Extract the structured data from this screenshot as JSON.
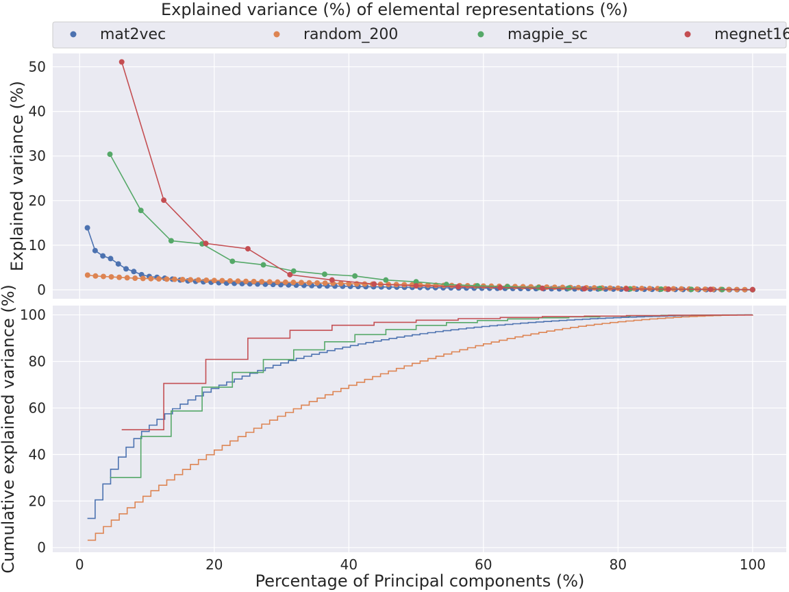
{
  "chart_data": {
    "type": "line",
    "title": "Explained variance (%) of elemental representations (%)",
    "xlabel": "Percentage of Principal components (%)",
    "xlim": [
      -4,
      105
    ],
    "xticks": [
      0,
      20,
      40,
      60,
      80,
      100
    ],
    "legend": {
      "placement": "top",
      "entries": [
        "mat2vec",
        "random_200",
        "magpie_sc",
        "megnet16"
      ]
    },
    "colors": {
      "mat2vec": "#4c72b0",
      "random_200": "#dd8452",
      "magpie_sc": "#55a868",
      "megnet16": "#c44e52"
    },
    "grid": true,
    "panels": [
      {
        "ylabel": "Explained variance (%)",
        "ylim": [
          -2,
          53
        ],
        "yticks": [
          0,
          10,
          20,
          30,
          40,
          50
        ],
        "kind": "line-markers",
        "series": [
          {
            "name": "mat2vec",
            "n": 87,
            "values": [
              13.9,
              8.8,
              7.6,
              7.0,
              5.8,
              4.7,
              4.1,
              3.4,
              3.0,
              2.8,
              2.6,
              2.4,
              2.2,
              2.0,
              1.9,
              1.8,
              1.7,
              1.6,
              1.5,
              1.45,
              1.4,
              1.35,
              1.3,
              1.25,
              1.2,
              1.15,
              1.1,
              1.05,
              1.0,
              0.95,
              0.9,
              0.87,
              0.84,
              0.8,
              0.77,
              0.74,
              0.71,
              0.68,
              0.65,
              0.62,
              0.6,
              0.57,
              0.55,
              0.52,
              0.5,
              0.48,
              0.46,
              0.44,
              0.42,
              0.4,
              0.38,
              0.36,
              0.35,
              0.33,
              0.32,
              0.3,
              0.29,
              0.28,
              0.26,
              0.25,
              0.24,
              0.23,
              0.22,
              0.21,
              0.2,
              0.19,
              0.18,
              0.17,
              0.16,
              0.15,
              0.14,
              0.13,
              0.12,
              0.11,
              0.1,
              0.09,
              0.08,
              0.07,
              0.06,
              0.05,
              0.05,
              0.04,
              0.04,
              0.03,
              0.03,
              0.02,
              0.02
            ]
          },
          {
            "name": "random_200",
            "n": 85,
            "values": [
              3.3,
              3.1,
              3.0,
              2.9,
              2.8,
              2.7,
              2.6,
              2.55,
              2.5,
              2.45,
              2.4,
              2.35,
              2.3,
              2.25,
              2.2,
              2.15,
              2.1,
              2.05,
              2.0,
              1.95,
              1.9,
              1.86,
              1.82,
              1.78,
              1.74,
              1.7,
              1.66,
              1.62,
              1.58,
              1.54,
              1.5,
              1.46,
              1.42,
              1.38,
              1.34,
              1.3,
              1.27,
              1.24,
              1.21,
              1.18,
              1.15,
              1.12,
              1.09,
              1.06,
              1.03,
              1.0,
              0.97,
              0.94,
              0.91,
              0.88,
              0.85,
              0.82,
              0.79,
              0.76,
              0.73,
              0.7,
              0.67,
              0.64,
              0.61,
              0.58,
              0.55,
              0.52,
              0.49,
              0.46,
              0.43,
              0.4,
              0.38,
              0.36,
              0.34,
              0.32,
              0.3,
              0.28,
              0.26,
              0.24,
              0.22,
              0.2,
              0.18,
              0.16,
              0.14,
              0.12,
              0.1,
              0.08,
              0.06,
              0.04,
              0.02
            ]
          },
          {
            "name": "magpie_sc",
            "x": [
              4.5,
              9.1,
              13.6,
              18.2,
              22.7,
              27.3,
              31.8,
              36.4,
              40.9,
              45.5,
              50.0,
              54.5,
              59.1,
              63.6,
              68.2,
              72.7,
              77.3,
              81.8,
              86.4,
              90.9,
              95.5,
              100.0
            ],
            "values": [
              30.4,
              17.8,
              11.0,
              10.3,
              6.4,
              5.6,
              4.2,
              3.5,
              3.1,
              2.2,
              1.8,
              1.2,
              0.9,
              0.7,
              0.5,
              0.4,
              0.3,
              0.2,
              0.15,
              0.1,
              0.06,
              0.03
            ]
          },
          {
            "name": "megnet16",
            "x": [
              6.25,
              12.5,
              18.75,
              25.0,
              31.25,
              37.5,
              43.75,
              50.0,
              56.25,
              62.5,
              68.75,
              75.0,
              81.25,
              87.5,
              93.75,
              100.0
            ],
            "values": [
              51.1,
              20.1,
              10.4,
              9.2,
              3.4,
              2.2,
              1.3,
              0.9,
              0.7,
              0.5,
              0.35,
              0.25,
              0.2,
              0.15,
              0.1,
              0.05
            ]
          }
        ]
      },
      {
        "ylabel": "Cumulative explained variance (%)",
        "ylim": [
          -2,
          104
        ],
        "yticks": [
          0,
          20,
          40,
          60,
          80,
          100
        ],
        "kind": "step-cumulative",
        "derived_from": "panels.0.series"
      }
    ]
  }
}
